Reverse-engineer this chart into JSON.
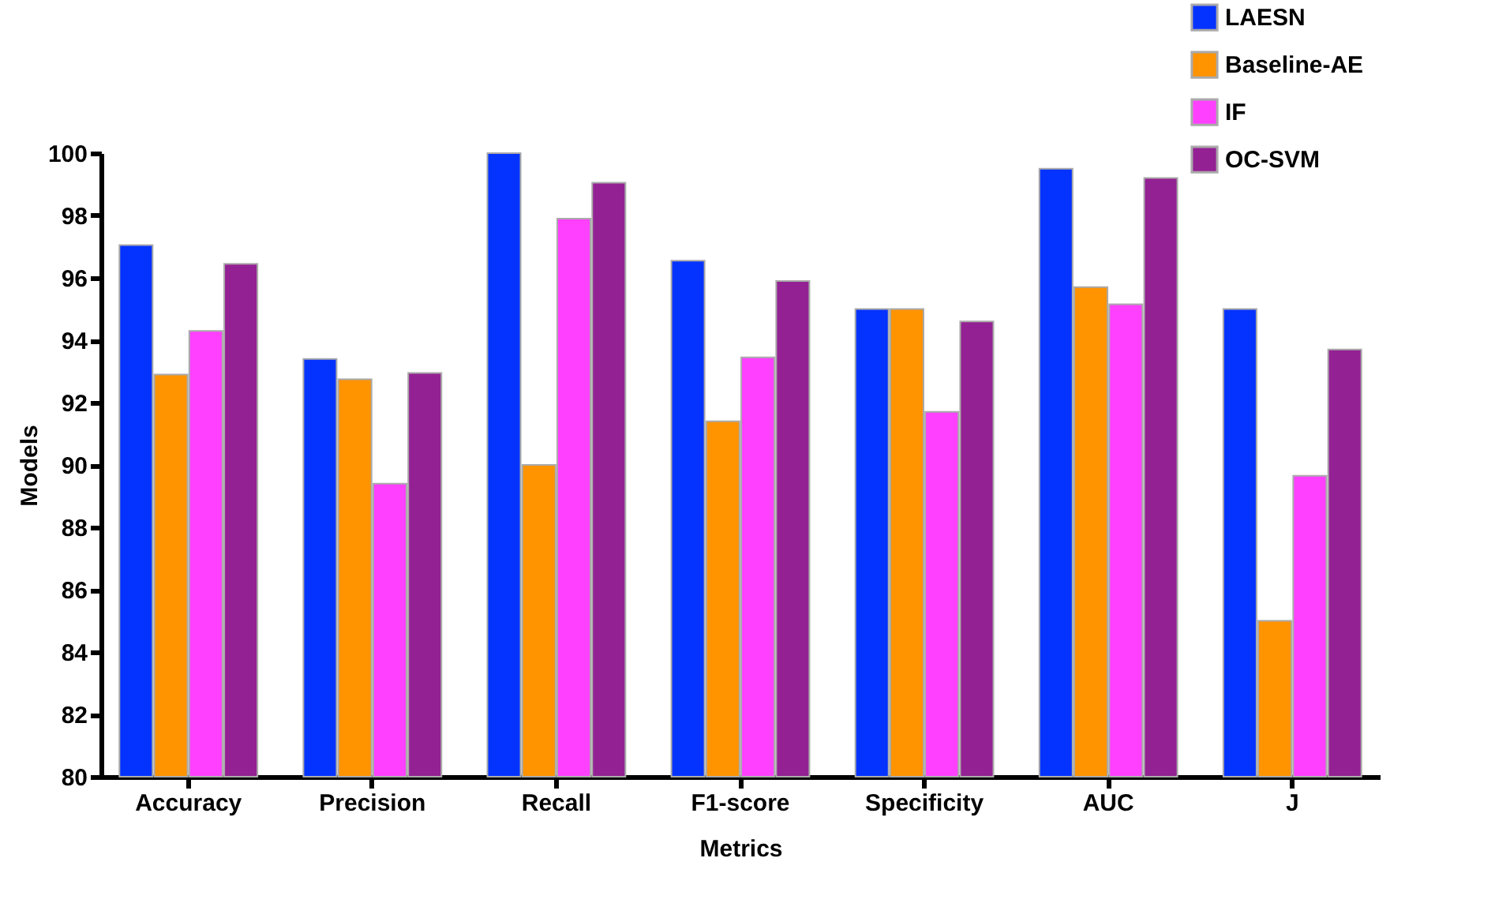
{
  "chart_data": {
    "type": "bar",
    "xlabel": "Metrics",
    "ylabel": "Models",
    "categories": [
      "Accuracy",
      "Precision",
      "Recall",
      "F1-score",
      "Specificity",
      "AUC",
      "J"
    ],
    "series": [
      {
        "name": "LAESN",
        "color": "#0433ff",
        "values": [
          97.05,
          93.4,
          100,
          96.55,
          95,
          99.5,
          95
        ]
      },
      {
        "name": "Baseline-AE",
        "color": "#ff9300",
        "values": [
          92.9,
          92.75,
          90,
          91.4,
          95,
          95.7,
          85
        ]
      },
      {
        "name": "IF",
        "color": "#ff40ff",
        "values": [
          94.3,
          89.4,
          97.9,
          93.45,
          91.7,
          95.15,
          89.65
        ]
      },
      {
        "name": "OC-SVM",
        "color": "#942193",
        "values": [
          96.45,
          92.95,
          99.05,
          95.9,
          94.6,
          99.2,
          93.7
        ]
      }
    ],
    "ylim": [
      80,
      100
    ],
    "yticks": [
      80,
      82,
      84,
      86,
      88,
      90,
      92,
      94,
      96,
      98,
      100
    ],
    "grid": false,
    "legend": "top right"
  }
}
